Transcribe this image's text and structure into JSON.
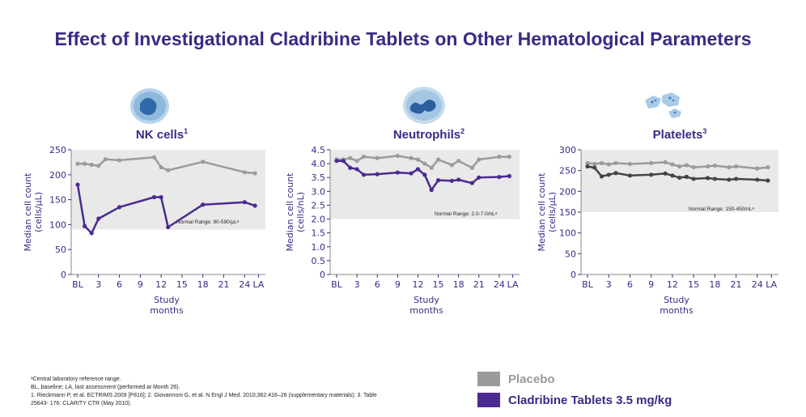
{
  "title": "Effect of Investigational Cladribine Tablets on Other Hematological Parameters",
  "colors": {
    "title": "#3b2a86",
    "placebo": "#9b9b9b",
    "cladribine": "#4b2a91",
    "platelet_cladribine": "#444444",
    "range_band": "#e9e9e9"
  },
  "icons": [
    "nk-cell-icon",
    "neutrophil-icon",
    "platelet-icon"
  ],
  "chart_data": [
    {
      "type": "line",
      "title": "NK cells",
      "title_sup": "1",
      "ylabel": "Median cell count\n(cells/µL)",
      "xlabel": "Study\nmonths",
      "ylim": [
        0,
        250
      ],
      "yticks": [
        "0",
        "50",
        "100",
        "150",
        "200",
        "250"
      ],
      "ytick_values": [
        0,
        50,
        100,
        150,
        200,
        250
      ],
      "xlim": [
        0,
        27
      ],
      "xticks": [
        "BL",
        "3",
        "6",
        "9",
        "12",
        "15",
        "18",
        "21",
        "24",
        "LA"
      ],
      "xtick_values": [
        0,
        3,
        6,
        9,
        12,
        15,
        18,
        21,
        24,
        26
      ],
      "normal_range_band": [
        90,
        250
      ],
      "normal_range_label": "Normal Range: 90-590/µLᵃ",
      "series": [
        {
          "name": "Placebo",
          "x": [
            0,
            1,
            2,
            3,
            4,
            6,
            11,
            12,
            13,
            18,
            24,
            25.5
          ],
          "y": [
            222,
            222,
            220,
            218,
            231,
            229,
            235,
            215,
            209,
            226,
            205,
            203
          ]
        },
        {
          "name": "Cladribine Tablets 3.5 mg/kg",
          "x": [
            0,
            1,
            2,
            3,
            6,
            11,
            12,
            13,
            18,
            24,
            25.5
          ],
          "y": [
            180,
            97,
            83,
            112,
            135,
            155,
            155,
            95,
            140,
            145,
            138
          ]
        }
      ]
    },
    {
      "type": "line",
      "title": "Neutrophils",
      "title_sup": "2",
      "ylabel": "Median cell count\n(cells/nL)",
      "xlabel": "Study\nmonths",
      "ylim": [
        0,
        4.5
      ],
      "yticks": [
        "0",
        "0.5",
        "1.0",
        "1.5",
        "2.0",
        "2.5",
        "3.0",
        "3.5",
        "4.0",
        "4.5"
      ],
      "ytick_values": [
        0,
        0.5,
        1.0,
        1.5,
        2.0,
        2.5,
        3.0,
        3.5,
        4.0,
        4.5
      ],
      "xlim": [
        0,
        27
      ],
      "xticks": [
        "BL",
        "3",
        "6",
        "9",
        "12",
        "15",
        "18",
        "21",
        "24",
        "LA"
      ],
      "xtick_values": [
        0,
        3,
        6,
        9,
        12,
        15,
        18,
        21,
        24,
        26
      ],
      "normal_range_band": [
        2.0,
        4.5
      ],
      "normal_range_label": "Normal Range: 2.0-7.0/nLᵃ",
      "series": [
        {
          "name": "Placebo",
          "x": [
            0,
            1,
            2,
            3,
            4,
            6,
            9,
            11,
            12,
            13,
            14,
            15,
            17,
            18,
            20,
            21,
            24,
            25.5
          ],
          "y": [
            4.15,
            4.15,
            4.2,
            4.1,
            4.25,
            4.2,
            4.28,
            4.2,
            4.15,
            4.0,
            3.85,
            4.15,
            3.95,
            4.1,
            3.85,
            4.15,
            4.25,
            4.25
          ]
        },
        {
          "name": "Cladribine Tablets 3.5 mg/kg",
          "x": [
            0,
            1,
            2,
            3,
            4,
            6,
            9,
            11,
            12,
            13,
            14,
            15,
            17,
            18,
            20,
            21,
            24,
            25.5
          ],
          "y": [
            4.1,
            4.1,
            3.85,
            3.8,
            3.6,
            3.62,
            3.68,
            3.65,
            3.8,
            3.6,
            3.05,
            3.4,
            3.38,
            3.42,
            3.3,
            3.5,
            3.52,
            3.55
          ]
        }
      ]
    },
    {
      "type": "line",
      "title": "Platelets",
      "title_sup": "3",
      "ylabel": "Median cell count\n(cells/µL)",
      "xlabel": "Study\nmonths",
      "ylim": [
        0,
        300
      ],
      "yticks": [
        "0",
        "50",
        "100",
        "150",
        "200",
        "250",
        "300"
      ],
      "ytick_values": [
        0,
        50,
        100,
        150,
        200,
        250,
        300
      ],
      "xlim": [
        0,
        27
      ],
      "xticks": [
        "BL",
        "3",
        "6",
        "9",
        "12",
        "15",
        "18",
        "21",
        "24",
        "LA"
      ],
      "xtick_values": [
        0,
        3,
        6,
        9,
        12,
        15,
        18,
        21,
        24,
        26
      ],
      "normal_range_band": [
        150,
        300
      ],
      "normal_range_label": "Normal Range: 150-450/nLᵃ",
      "series": [
        {
          "name": "Placebo",
          "x": [
            0,
            1,
            2,
            3,
            4,
            6,
            9,
            11,
            12,
            13,
            14,
            15,
            17,
            18,
            20,
            21,
            24,
            25.5
          ],
          "y": [
            268,
            266,
            268,
            265,
            268,
            266,
            268,
            270,
            265,
            260,
            263,
            258,
            260,
            262,
            258,
            260,
            255,
            258
          ]
        },
        {
          "name": "Cladribine Tablets 3.5 mg/kg",
          "x": [
            0,
            1,
            2,
            3,
            4,
            6,
            9,
            11,
            12,
            13,
            14,
            15,
            17,
            18,
            20,
            21,
            24,
            25.5
          ],
          "y": [
            260,
            257,
            236,
            240,
            244,
            238,
            240,
            243,
            238,
            233,
            235,
            230,
            232,
            230,
            228,
            230,
            228,
            226
          ]
        }
      ]
    }
  ],
  "legend": [
    {
      "label": "Placebo",
      "color": "#9b9b9b",
      "text_color": "#9b9b9b"
    },
    {
      "label": "Cladribine Tablets 3.5 mg/kg",
      "color": "#4b2a91",
      "text_color": "#3b2a86"
    }
  ],
  "footnotes": [
    "ᵃCentral laboratory reference range.",
    "BL, baseline; LA, last assessment (performed at Month 26).",
    "1. Rieckmann P, et al. ECTRIMS 2009 [P816]; 2. Giovannoni G, et al. N Engl J Med. 2010;362:416–26 (supplementary materials); 3. Table",
    "25643- 176: CLARITY CTR (May 2010)."
  ]
}
